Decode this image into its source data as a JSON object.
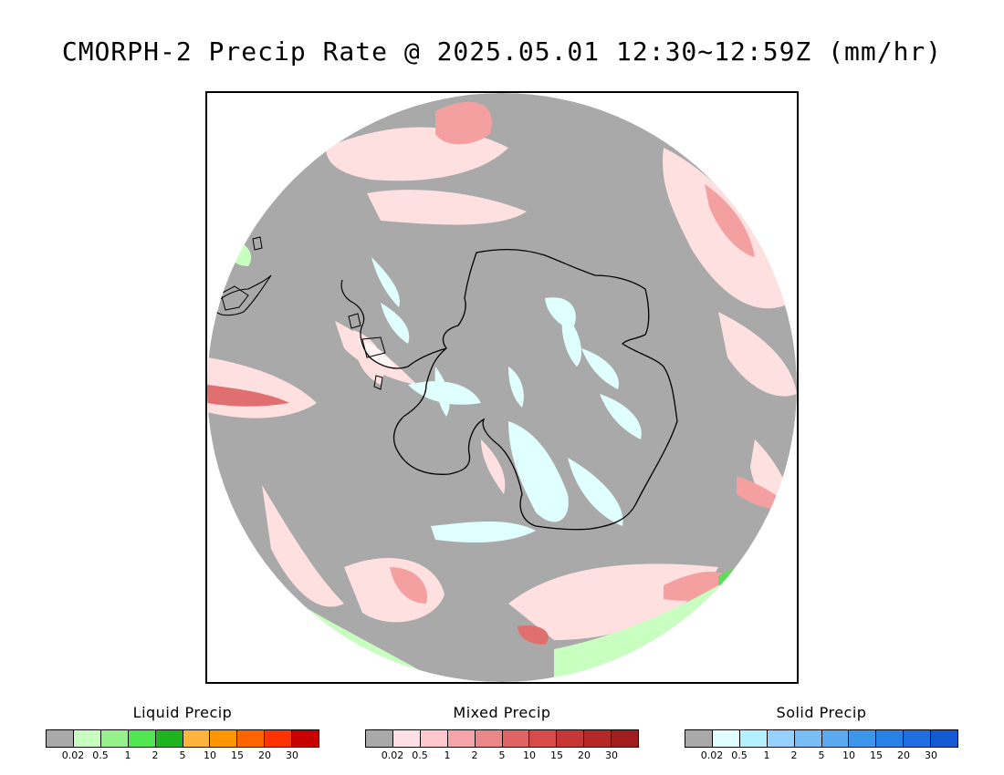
{
  "title": "CMORPH-2 Precip Rate @ 2025.05.01 12:30~12:59Z (mm/hr)",
  "map": {
    "projection": "south-polar-stereographic",
    "region": "Antarctica / Southern Ocean",
    "colors": {
      "no_precip": "#a9a9a9",
      "mixed_light": "#ffe0e0",
      "mixed_mod": "#f4a0a0",
      "mixed_heavy": "#e07070",
      "solid_light": "#e0ffff",
      "liquid_light": "#c8ffc0",
      "liquid_mod": "#5ddc5d",
      "liquid_heavy": "#18b818",
      "coastline": "#000000",
      "outside": "#ffffff"
    }
  },
  "legends": [
    {
      "id": "liquid",
      "title": "Liquid Precip",
      "colors": [
        "#a9a9a9",
        "#c8ffc0",
        "#96f08c",
        "#50e650",
        "#1eb41e",
        "#ffb43c",
        "#ff9600",
        "#ff6400",
        "#ff3200",
        "#c80000"
      ],
      "ticks": [
        "0.02",
        "0.5",
        "1",
        "2",
        "5",
        "10",
        "15",
        "20",
        "30"
      ]
    },
    {
      "id": "mixed",
      "title": "Mixed Precip",
      "colors": [
        "#a9a9a9",
        "#ffe0e6",
        "#ffc8cd",
        "#f5a5aa",
        "#eb8787",
        "#e16464",
        "#d74b4b",
        "#c83737",
        "#b42828",
        "#a01e1e"
      ],
      "ticks": [
        "0.02",
        "0.5",
        "1",
        "2",
        "5",
        "10",
        "15",
        "20",
        "30"
      ]
    },
    {
      "id": "solid",
      "title": "Solid Precip",
      "colors": [
        "#a9a9a9",
        "#e0ffff",
        "#b4f0ff",
        "#96d2ff",
        "#78bef5",
        "#5aaaf0",
        "#3c96eb",
        "#2882e6",
        "#1e6ee1",
        "#145ad2"
      ],
      "ticks": [
        "0.02",
        "0.5",
        "1",
        "2",
        "5",
        "10",
        "15",
        "20",
        "30"
      ]
    }
  ]
}
